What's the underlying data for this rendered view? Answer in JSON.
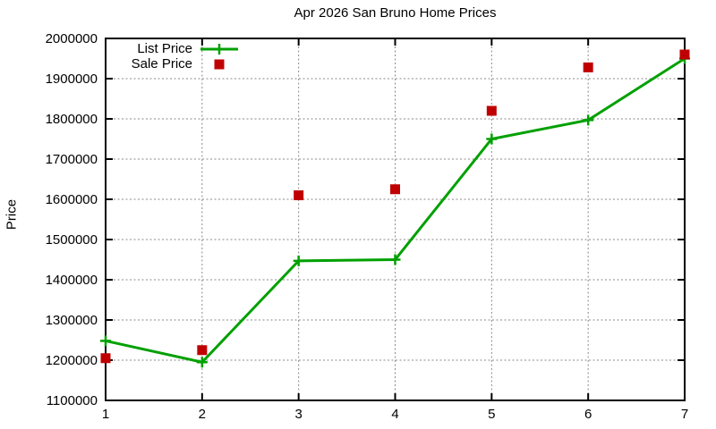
{
  "chart_data": {
    "type": "line",
    "title": "Apr 2026 San Bruno Home Prices",
    "xlabel": "",
    "ylabel": "Price",
    "x": [
      1,
      2,
      3,
      4,
      5,
      6,
      7
    ],
    "series": [
      {
        "name": "List Price",
        "color": "#00a000",
        "marker": "plus",
        "line": true,
        "values": [
          1248000,
          1195000,
          1447000,
          1450000,
          1750000,
          1797000,
          1950000
        ]
      },
      {
        "name": "Sale Price",
        "color": "#c00000",
        "marker": "square",
        "line": false,
        "values": [
          1205000,
          1225000,
          1610000,
          1625000,
          1820000,
          1928000,
          1960000
        ]
      }
    ],
    "xlim": [
      1,
      7
    ],
    "ylim": [
      1100000,
      2000000
    ],
    "xticks": [
      1,
      2,
      3,
      4,
      5,
      6,
      7
    ],
    "yticks": [
      1100000,
      1200000,
      1300000,
      1400000,
      1500000,
      1600000,
      1700000,
      1800000,
      1900000,
      2000000
    ],
    "grid": true,
    "grid_style": "dashed-gray",
    "legend_position": "top-left-inside",
    "border_color": "#000000",
    "grid_color": "#8a8a8a"
  }
}
